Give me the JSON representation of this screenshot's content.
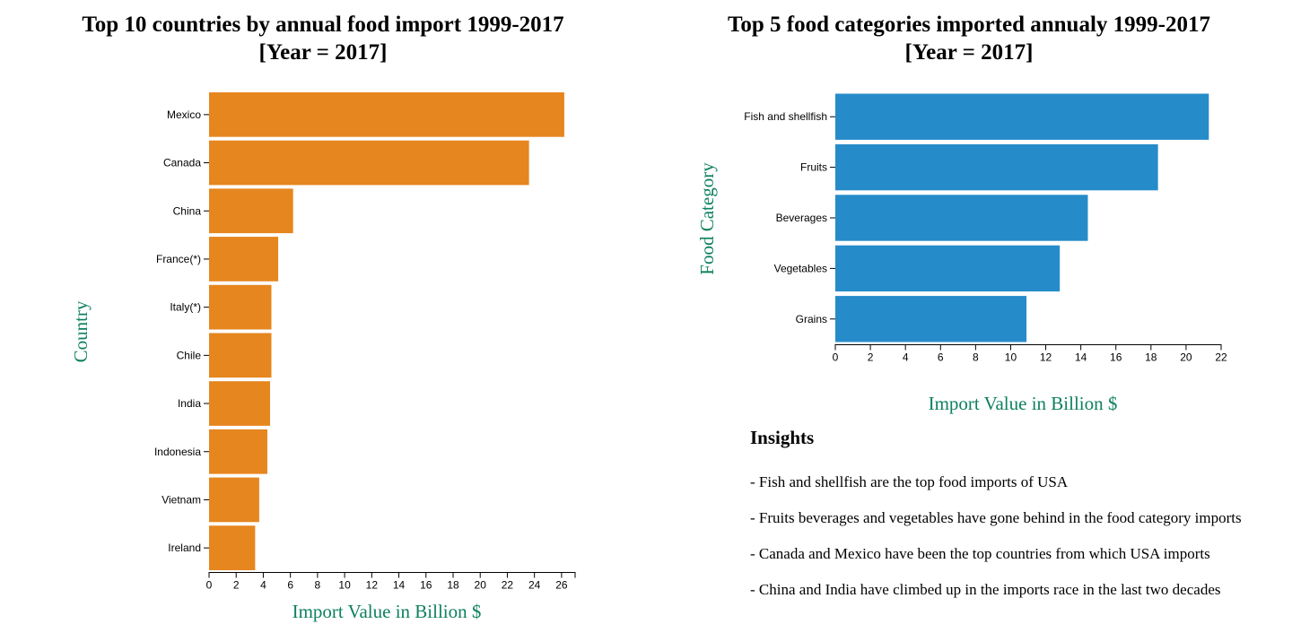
{
  "chart_data": [
    {
      "type": "bar",
      "orientation": "horizontal",
      "title_line1": "Top 10 countries by annual food import 1999-2017",
      "title_line2": "[Year = 2017]",
      "xlabel": "Import Value in Billion $",
      "ylabel": "Country",
      "xlim": [
        0,
        27
      ],
      "xticks": [
        0,
        2,
        4,
        6,
        8,
        10,
        12,
        14,
        16,
        18,
        20,
        22,
        24,
        26
      ],
      "categories": [
        "Mexico",
        "Canada",
        "China",
        "France(*)",
        "Italy(*)",
        "Chile",
        "India",
        "Indonesia",
        "Vietnam",
        "Ireland"
      ],
      "values": [
        26.2,
        23.6,
        6.2,
        5.1,
        4.6,
        4.6,
        4.5,
        4.3,
        3.7,
        3.4
      ],
      "color": "#e6861f"
    },
    {
      "type": "bar",
      "orientation": "horizontal",
      "title_line1": "Top 5 food categories imported annualy 1999-2017",
      "title_line2": "[Year = 2017]",
      "xlabel": "Import Value in Billion $",
      "ylabel": "Food Category",
      "xlim": [
        0,
        22
      ],
      "xticks": [
        0,
        2,
        4,
        6,
        8,
        10,
        12,
        14,
        16,
        18,
        20,
        22
      ],
      "categories": [
        "Fish and shellfish",
        "Fruits",
        "Beverages",
        "Vegetables",
        "Grains"
      ],
      "values": [
        21.3,
        18.4,
        14.4,
        12.8,
        10.9
      ],
      "color": "#268bc9"
    }
  ],
  "insights": {
    "heading": "Insights",
    "lines": [
      "- Fish and shellfish are the top food imports of USA",
      "- Fruits beverages and vegetables have gone behind in the food category imports",
      "- Canada and Mexico have been the top countries from which USA imports",
      "- China and India have climbed up in the imports race in the last two decades"
    ]
  }
}
